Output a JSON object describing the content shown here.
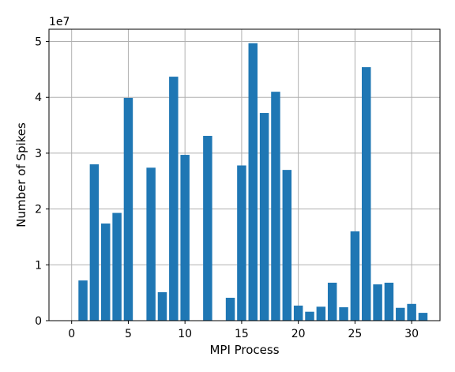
{
  "chart_data": {
    "type": "bar",
    "xlabel": "MPI Process",
    "ylabel": "Number of Spikes",
    "y_offset_label": "1e7",
    "xlim": [
      -2.0,
      32.5
    ],
    "ylim": [
      0,
      5.22
    ],
    "y_scale_factor": 10000000,
    "xticks": [
      0,
      5,
      10,
      15,
      20,
      25,
      30
    ],
    "yticks": [
      0,
      1,
      2,
      3,
      4,
      5
    ],
    "grid": true,
    "bar_color": "#1f77b4",
    "x": [
      0,
      1,
      2,
      3,
      4,
      5,
      6,
      7,
      8,
      9,
      10,
      11,
      12,
      13,
      14,
      15,
      16,
      17,
      18,
      19,
      20,
      21,
      22,
      23,
      24,
      25,
      26,
      27,
      28,
      29,
      30,
      31
    ],
    "values": [
      0,
      0.72,
      2.8,
      1.74,
      1.93,
      3.99,
      0,
      2.74,
      0.51,
      4.37,
      2.97,
      0,
      3.31,
      0,
      0.41,
      2.78,
      4.97,
      3.72,
      4.1,
      2.7,
      0.27,
      0.16,
      0.25,
      0.68,
      0.24,
      1.6,
      4.54,
      0.65,
      0.68,
      0.23,
      0.3,
      0.14
    ]
  }
}
